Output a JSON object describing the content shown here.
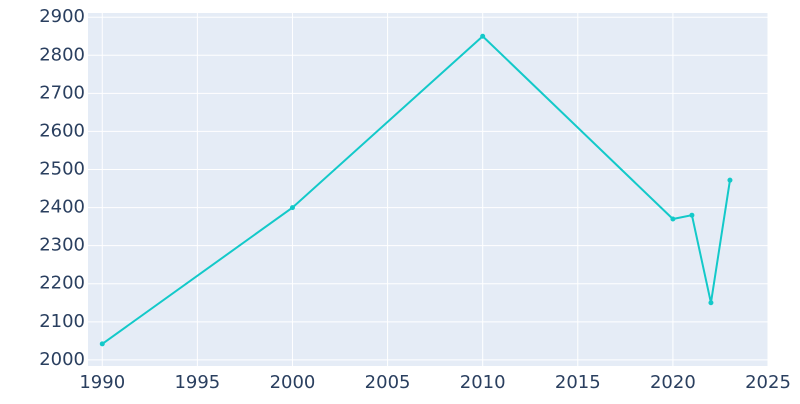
{
  "chart_data": {
    "type": "line",
    "x": [
      1990,
      2000,
      2010,
      2020,
      2021,
      2022,
      2023
    ],
    "series": [
      {
        "color": "#13c9c9",
        "values": [
          2042,
          2400,
          2850,
          2370,
          2380,
          2150,
          2472
        ]
      }
    ],
    "xlim": [
      1989.25,
      2025
    ],
    "xticks": [
      1990,
      1995,
      2000,
      2005,
      2010,
      2015,
      2020,
      2025
    ],
    "ylim": [
      1984,
      2911
    ],
    "yticks": [
      2000,
      2100,
      2200,
      2300,
      2400,
      2500,
      2600,
      2700,
      2800,
      2900
    ],
    "grid": true
  }
}
